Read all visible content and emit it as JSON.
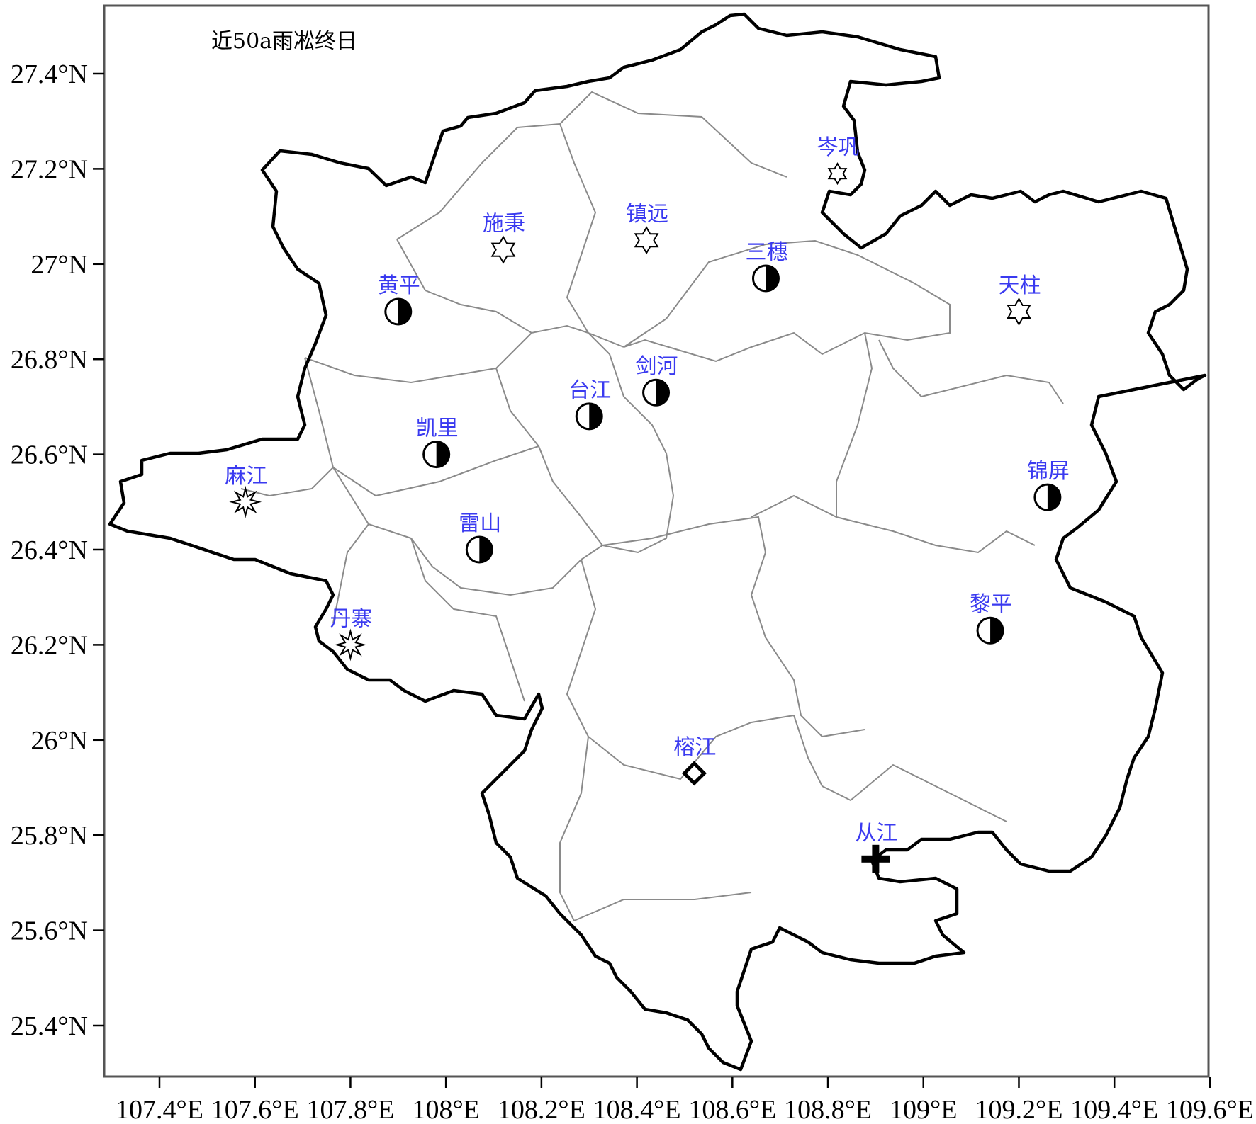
{
  "title": "近50a雨凇终日",
  "colors": {
    "frame": "#555555",
    "outline": "#000000",
    "county_border": "#8a8a8a",
    "label": "#3a3af0"
  },
  "axes": {
    "x_ticks": [
      {
        "value": 107.4,
        "label": "107.4°E"
      },
      {
        "value": 107.6,
        "label": "107.6°E"
      },
      {
        "value": 107.8,
        "label": "107.8°E"
      },
      {
        "value": 108.0,
        "label": "108°E"
      },
      {
        "value": 108.2,
        "label": "108.2°E"
      },
      {
        "value": 108.4,
        "label": "108.4°E"
      },
      {
        "value": 108.6,
        "label": "108.6°E"
      },
      {
        "value": 108.8,
        "label": "108.8°E"
      },
      {
        "value": 109.0,
        "label": "109°E"
      },
      {
        "value": 109.2,
        "label": "109.2°E"
      },
      {
        "value": 109.4,
        "label": "109.4°E"
      },
      {
        "value": 109.6,
        "label": "109.6°E"
      }
    ],
    "y_ticks": [
      {
        "value": 27.4,
        "label": "27.4°N"
      },
      {
        "value": 27.2,
        "label": "27.2°N"
      },
      {
        "value": 27.0,
        "label": "27°N"
      },
      {
        "value": 26.8,
        "label": "26.8°N"
      },
      {
        "value": 26.6,
        "label": "26.6°N"
      },
      {
        "value": 26.4,
        "label": "26.4°N"
      },
      {
        "value": 26.2,
        "label": "26.2°N"
      },
      {
        "value": 26.0,
        "label": "26°N"
      },
      {
        "value": 25.8,
        "label": "25.8°N"
      },
      {
        "value": 25.6,
        "label": "25.6°N"
      },
      {
        "value": 25.4,
        "label": "25.4°N"
      }
    ],
    "lon_range": [
      107.28,
      109.6
    ],
    "lat_range": [
      25.3,
      27.54
    ]
  },
  "stations": [
    {
      "name": "施秉",
      "lon": 108.12,
      "lat": 27.03,
      "symbol": "star6"
    },
    {
      "name": "镇远",
      "lon": 108.42,
      "lat": 27.05,
      "symbol": "star6"
    },
    {
      "name": "岑巩",
      "lon": 108.82,
      "lat": 27.19,
      "symbol": "star6-small"
    },
    {
      "name": "三穗",
      "lon": 108.67,
      "lat": 26.97,
      "symbol": "half-circle"
    },
    {
      "name": "天柱",
      "lon": 109.2,
      "lat": 26.9,
      "symbol": "star6"
    },
    {
      "name": "黄平",
      "lon": 107.9,
      "lat": 26.9,
      "symbol": "half-circle"
    },
    {
      "name": "剑河",
      "lon": 108.44,
      "lat": 26.73,
      "symbol": "half-circle"
    },
    {
      "name": "台江",
      "lon": 108.3,
      "lat": 26.68,
      "symbol": "half-circle"
    },
    {
      "name": "凯里",
      "lon": 107.98,
      "lat": 26.6,
      "symbol": "half-circle"
    },
    {
      "name": "麻江",
      "lon": 107.58,
      "lat": 26.5,
      "symbol": "star8"
    },
    {
      "name": "锦屏",
      "lon": 109.26,
      "lat": 26.51,
      "symbol": "half-circle"
    },
    {
      "name": "雷山",
      "lon": 108.07,
      "lat": 26.4,
      "symbol": "half-circle"
    },
    {
      "name": "黎平",
      "lon": 109.14,
      "lat": 26.23,
      "symbol": "half-circle"
    },
    {
      "name": "丹寨",
      "lon": 107.8,
      "lat": 26.2,
      "symbol": "star8"
    },
    {
      "name": "榕江",
      "lon": 108.52,
      "lat": 25.93,
      "symbol": "diamond"
    },
    {
      "name": "从江",
      "lon": 108.9,
      "lat": 25.75,
      "symbol": "cross"
    }
  ]
}
